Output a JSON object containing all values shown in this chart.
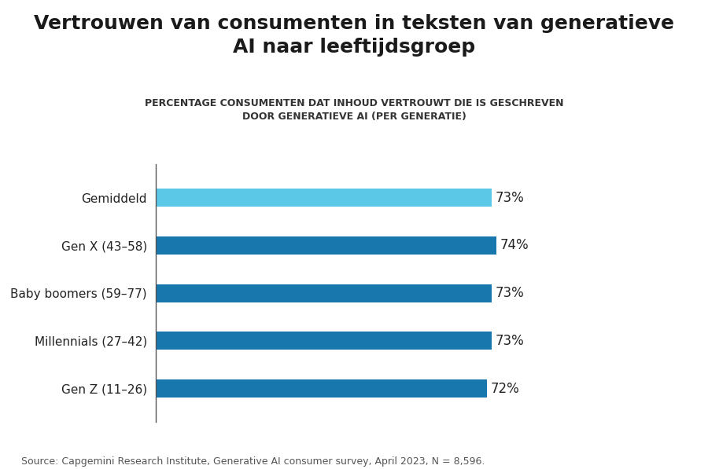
{
  "title": "Vertrouwen van consumenten in teksten van generatieve\nAI naar leeftijdsgroep",
  "subtitle": "PERCENTAGE CONSUMENTEN DAT INHOUD VERTROUWT DIE IS GESCHREVEN\nDOOR GENERATIEVE AI (PER GENERATIE)",
  "categories": [
    "Gemiddeld",
    "Gen X (43–58)",
    "Baby boomers (59–77)",
    "Millennials (27–42)",
    "Gen Z (11–26)"
  ],
  "values": [
    73,
    74,
    73,
    73,
    72
  ],
  "bar_colors": [
    "#5bc8e8",
    "#1878ae",
    "#1878ae",
    "#1878ae",
    "#1878ae"
  ],
  "labels": [
    "73%",
    "74%",
    "73%",
    "73%",
    "72%"
  ],
  "xlim": [
    0,
    100
  ],
  "source": "Source: Capgemini Research Institute, Generative AI consumer survey, April 2023, N = 8,596.",
  "title_fontsize": 18,
  "subtitle_fontsize": 9,
  "label_fontsize": 12,
  "tick_fontsize": 11,
  "source_fontsize": 9,
  "background_color": "#ffffff",
  "bar_height": 0.38
}
